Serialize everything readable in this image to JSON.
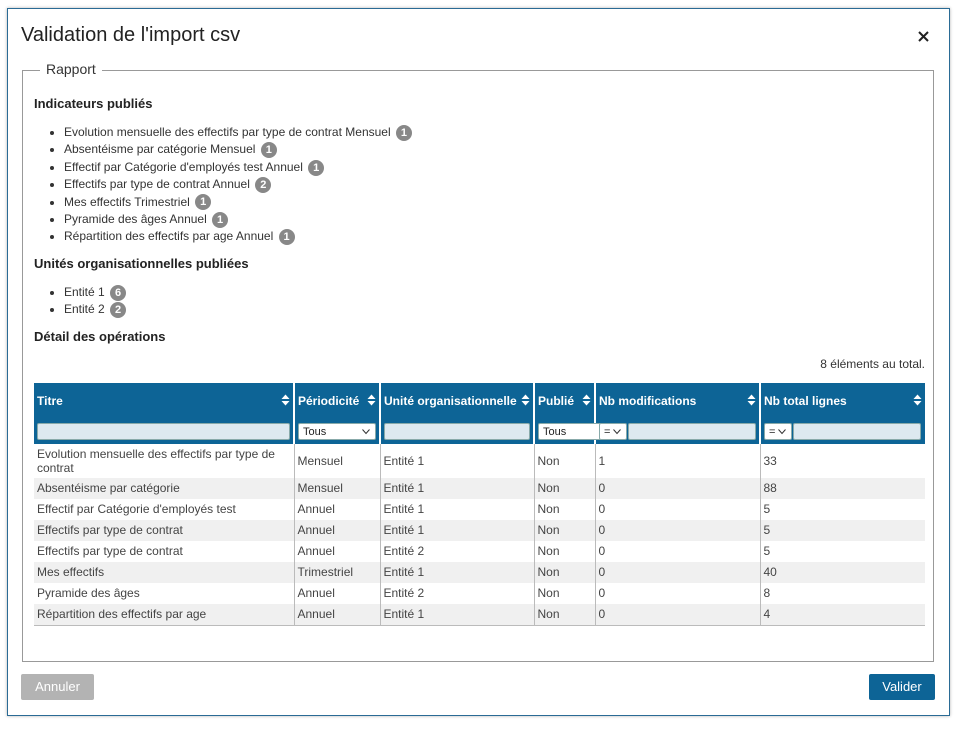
{
  "dialog": {
    "title": "Validation de l'import csv",
    "legend": "Rapport",
    "sections": [
      {
        "heading": "Indicateurs publiés",
        "items": [
          {
            "label": "Evolution mensuelle des effectifs par type de contrat Mensuel",
            "count": 1
          },
          {
            "label": "Absentéisme par catégorie Mensuel",
            "count": 1
          },
          {
            "label": "Effectif par Catégorie d'employés test Annuel",
            "count": 1
          },
          {
            "label": "Effectifs par type de contrat Annuel",
            "count": 2
          },
          {
            "label": "Mes effectifs Trimestriel",
            "count": 1
          },
          {
            "label": "Pyramide des âges Annuel",
            "count": 1
          },
          {
            "label": "Répartition des effectifs par age Annuel",
            "count": 1
          }
        ]
      },
      {
        "heading": "Unités organisationnelles publiées",
        "items": [
          {
            "label": "Entité 1",
            "count": 6
          },
          {
            "label": "Entité 2",
            "count": 2
          }
        ]
      }
    ],
    "detail_heading": "Détail des opérations",
    "total": "8 éléments au total.",
    "table": {
      "headers": [
        {
          "label": "Titre"
        },
        {
          "label": "Périodicité",
          "filter": "Tous"
        },
        {
          "label": "Unité organisationnelle"
        },
        {
          "label": "Publié",
          "filter": "Tous"
        },
        {
          "label": "Nb modifications",
          "filter": "="
        },
        {
          "label": "Nb total lignes",
          "filter": "="
        }
      ],
      "rows": [
        [
          "Evolution mensuelle des effectifs par type de contrat",
          "Mensuel",
          "Entité 1",
          "Non",
          1,
          33
        ],
        [
          "Absentéisme par catégorie",
          "Mensuel",
          "Entité 1",
          "Non",
          0,
          88
        ],
        [
          "Effectif par Catégorie d'employés test",
          "Annuel",
          "Entité 1",
          "Non",
          0,
          5
        ],
        [
          "Effectifs par type de contrat",
          "Annuel",
          "Entité 1",
          "Non",
          0,
          5
        ],
        [
          "Effectifs par type de contrat",
          "Annuel",
          "Entité 2",
          "Non",
          0,
          5
        ],
        [
          "Mes effectifs",
          "Trimestriel",
          "Entité 1",
          "Non",
          0,
          40
        ],
        [
          "Pyramide des âges",
          "Annuel",
          "Entité 2",
          "Non",
          0,
          8
        ],
        [
          "Répartition des effectifs par age",
          "Annuel",
          "Entité 1",
          "Non",
          0,
          4
        ]
      ]
    },
    "buttons": {
      "cancel": "Annuler",
      "confirm": "Valider"
    }
  }
}
